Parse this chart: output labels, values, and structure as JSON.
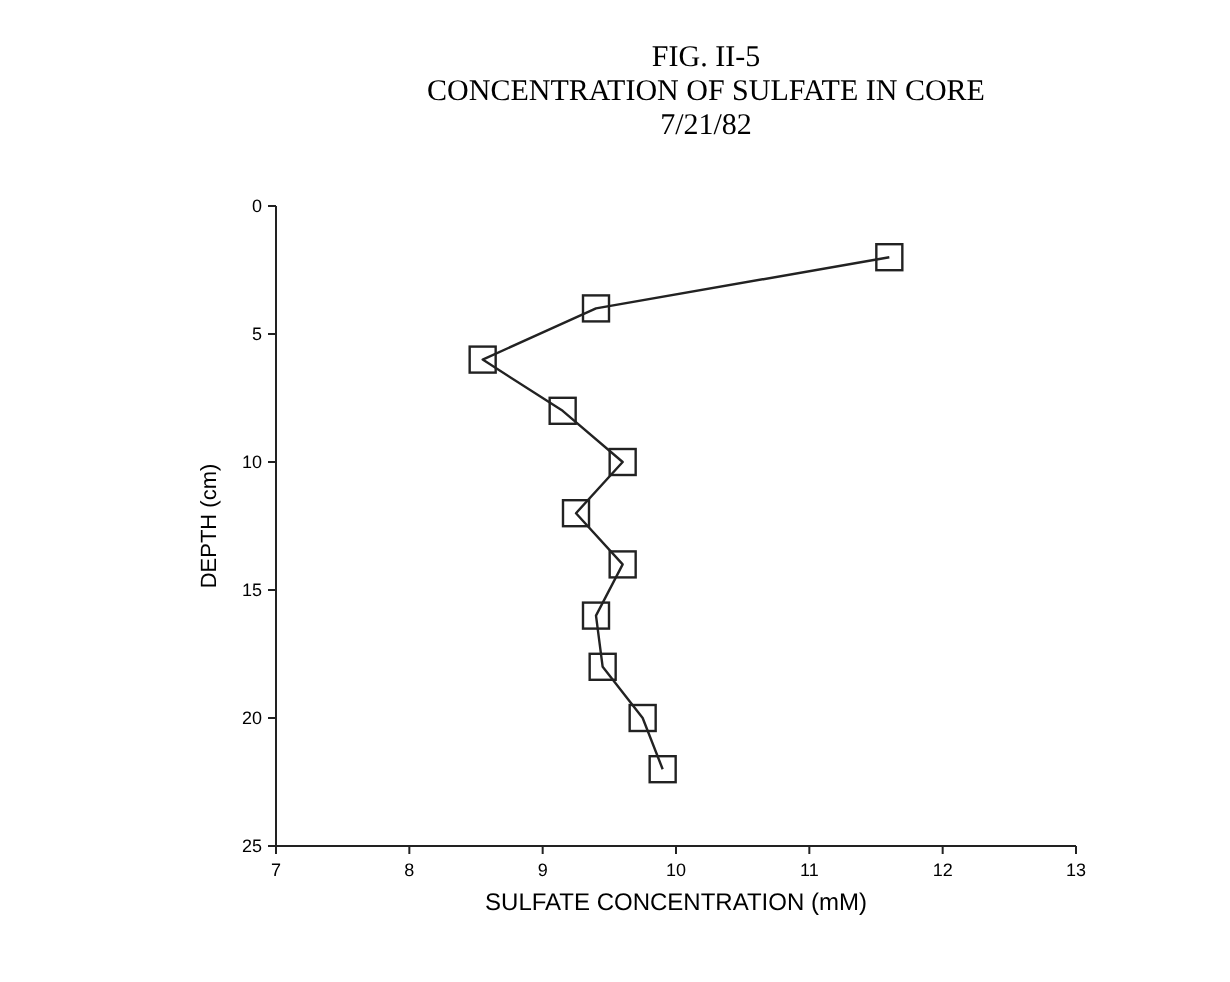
{
  "chart_data": {
    "type": "line",
    "title": "FIG. II-5\nCONCENTRATION OF SULFATE IN CORE\n7/21/82",
    "xlabel": "SULFATE CONCENTRATION (mM)",
    "ylabel": "DEPTH (cm)",
    "series": [
      {
        "color": "#222222",
        "x": [
          11.6,
          9.4,
          8.55,
          9.15,
          9.6,
          9.25,
          9.6,
          9.4,
          9.45,
          9.75,
          9.9
        ],
        "values": [
          2,
          4,
          6,
          8,
          10,
          12,
          14,
          16,
          18,
          20,
          22
        ]
      }
    ],
    "xlim": [
      7,
      13
    ],
    "xticks": [
      7,
      8,
      9,
      10,
      11,
      12,
      13
    ],
    "ylim": [
      25,
      0
    ],
    "yticks": [
      0,
      5,
      10,
      15,
      20,
      25
    ],
    "grid": false,
    "marker": "square",
    "line_style": "solid"
  }
}
